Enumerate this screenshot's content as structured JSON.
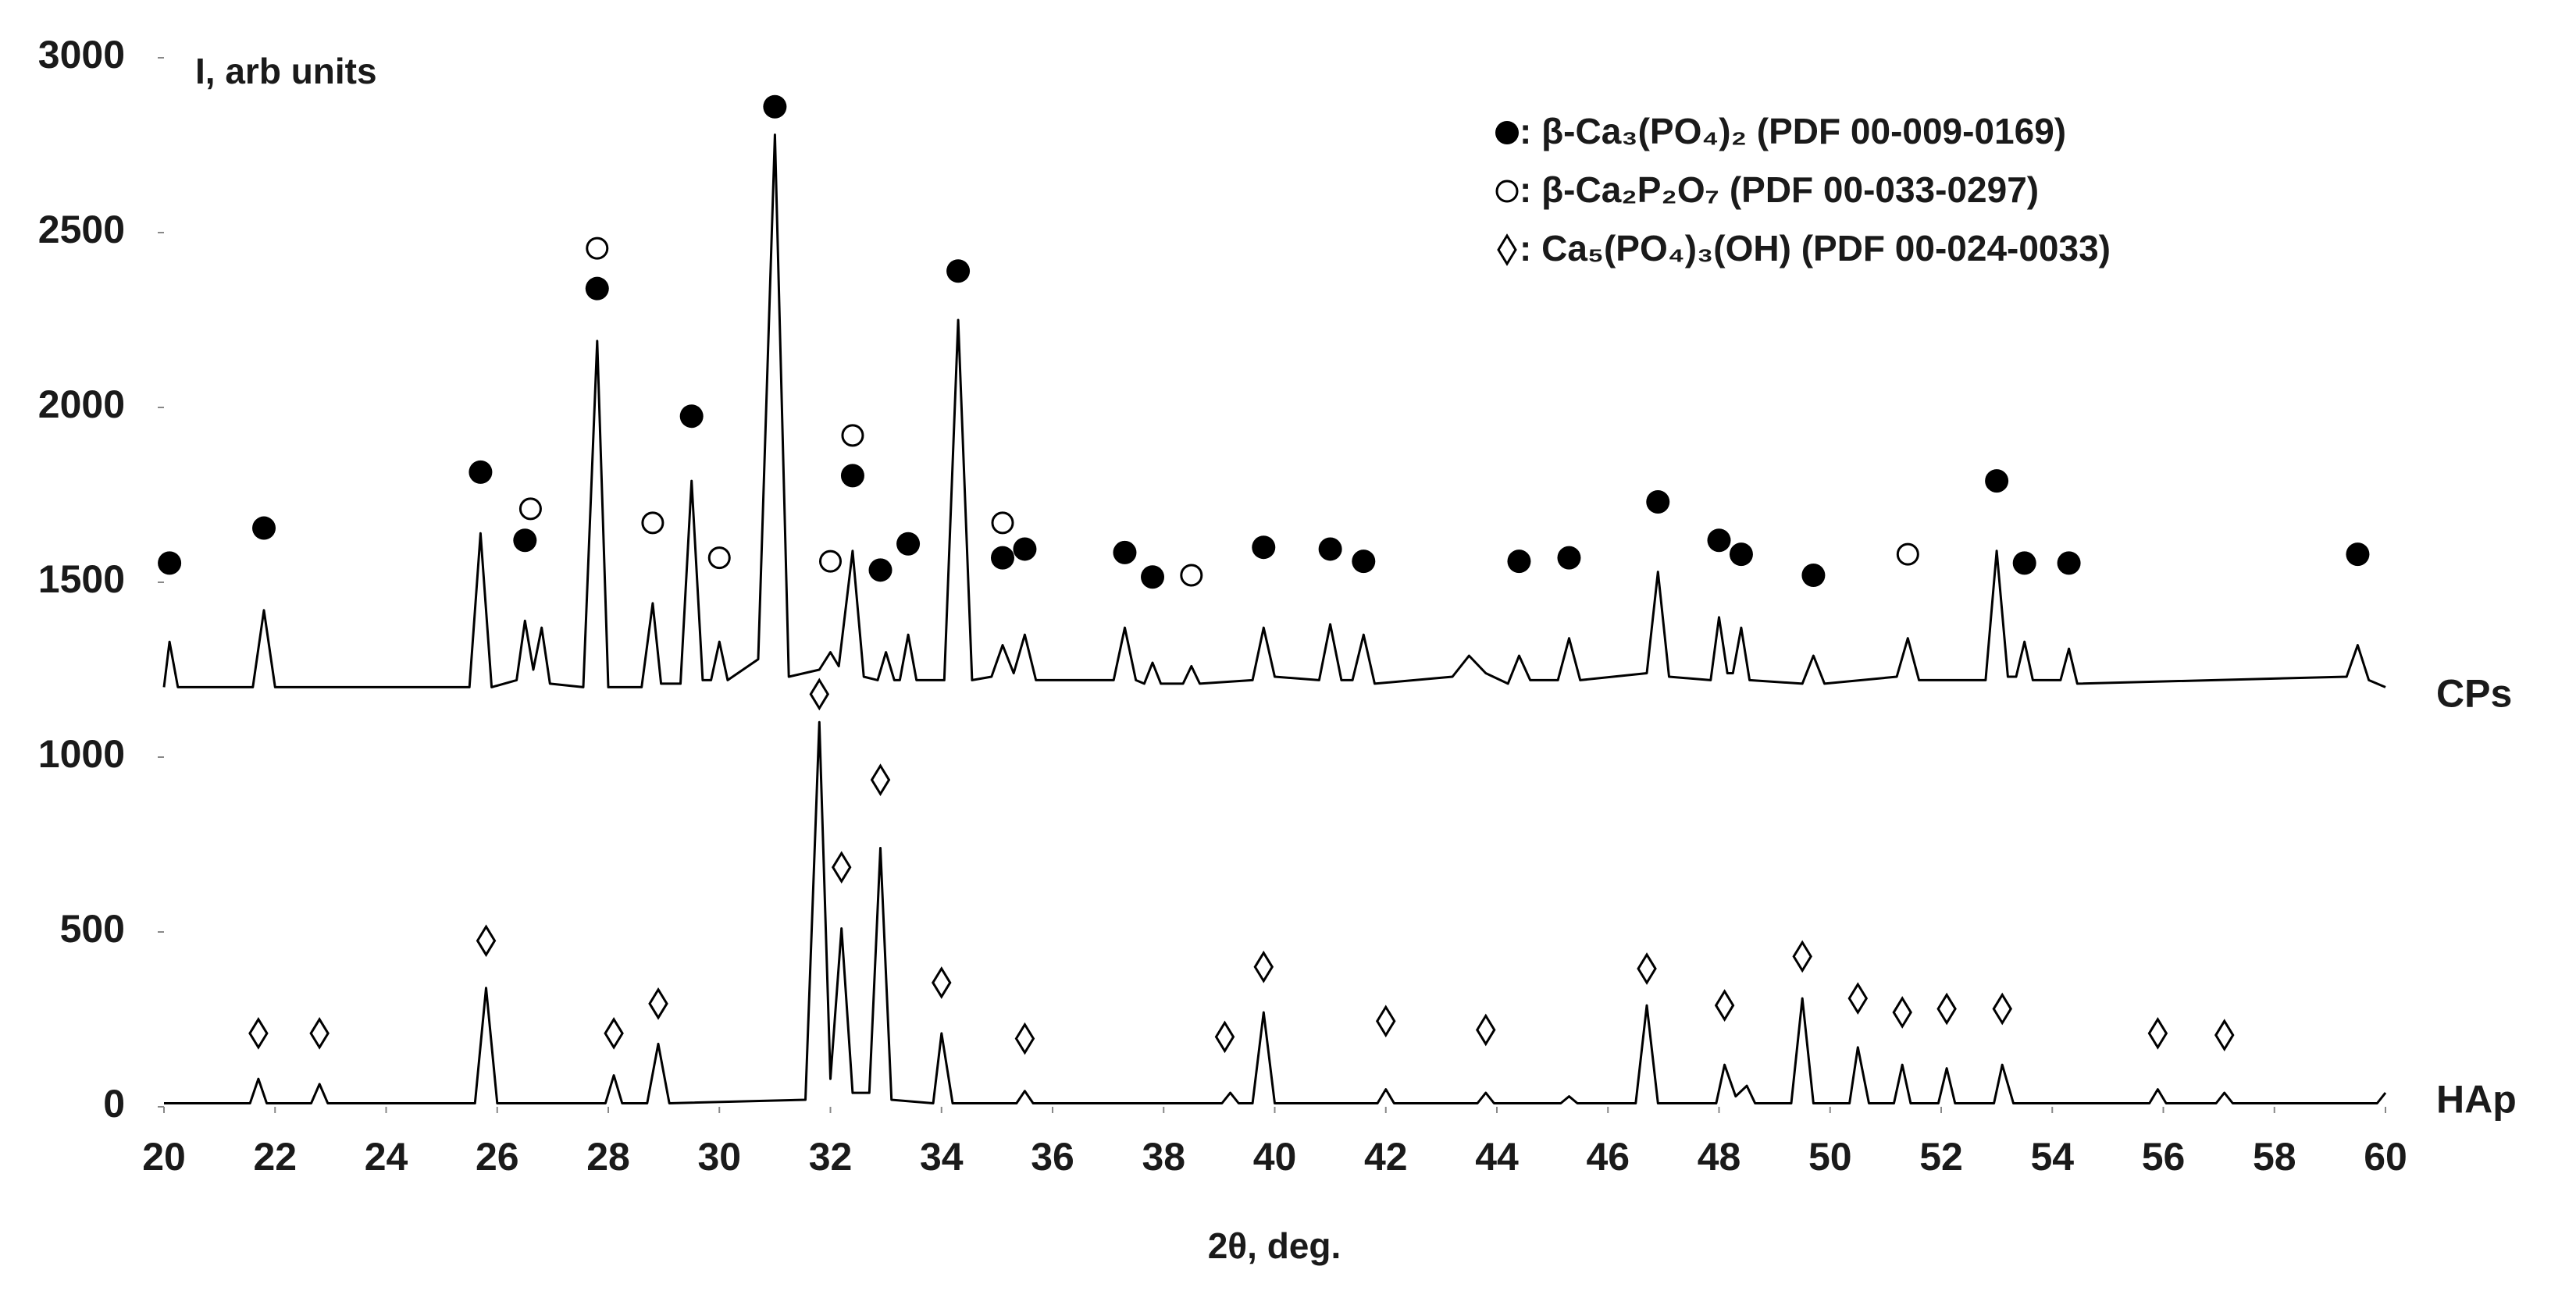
{
  "chart_data": {
    "type": "line",
    "y_label": "I, arb units",
    "x_label": "2θ, deg.",
    "xlim": [
      20,
      60
    ],
    "xticks": [
      20,
      22,
      24,
      26,
      28,
      30,
      32,
      34,
      36,
      38,
      40,
      42,
      44,
      46,
      48,
      50,
      52,
      54,
      56,
      58,
      60
    ],
    "ylim": [
      0,
      3000
    ],
    "yticks": [
      0,
      500,
      1000,
      1500,
      2000,
      2500,
      3000
    ],
    "grid": false,
    "legend": "upper right",
    "series": [
      {
        "name": "CPs",
        "color": "#000000",
        "x": [
          20,
          20.1,
          20.25,
          21.6,
          21.8,
          22,
          25.5,
          25.7,
          25.9,
          26.35,
          26.5,
          26.65,
          26.8,
          26.95,
          27.55,
          27.8,
          28.0,
          28.6,
          28.8,
          28.95,
          29.3,
          29.5,
          29.7,
          29.85,
          30.0,
          30.15,
          30.7,
          31.0,
          31.25,
          31.8,
          32.0,
          32.15,
          32.4,
          32.6,
          32.85,
          33.0,
          33.15,
          33.25,
          33.4,
          33.55,
          34.05,
          34.3,
          34.55,
          34.9,
          35.1,
          35.3,
          35.5,
          35.7,
          37.1,
          37.3,
          37.5,
          37.65,
          37.8,
          37.95,
          38.35,
          38.5,
          38.65,
          39.6,
          39.8,
          40.0,
          40.8,
          41.0,
          41.2,
          41.4,
          41.6,
          41.8,
          43.2,
          43.5,
          43.8,
          44.2,
          44.4,
          44.6,
          45.1,
          45.3,
          45.5,
          46.7,
          46.9,
          47.1,
          47.85,
          48.0,
          48.15,
          48.25,
          48.4,
          48.55,
          49.5,
          49.7,
          49.9,
          51.2,
          51.4,
          51.6,
          52.8,
          53.0,
          53.2,
          53.35,
          53.5,
          53.65,
          54.15,
          54.3,
          54.45,
          59.3,
          59.5,
          59.7,
          60
        ],
        "values": [
          1200,
          1330,
          1200,
          1200,
          1420,
          1200,
          1200,
          1640,
          1200,
          1220,
          1390,
          1250,
          1370,
          1210,
          1200,
          2190,
          1200,
          1200,
          1440,
          1210,
          1210,
          1790,
          1220,
          1220,
          1330,
          1220,
          1280,
          2780,
          1230,
          1250,
          1300,
          1260,
          1590,
          1230,
          1220,
          1300,
          1220,
          1220,
          1350,
          1220,
          1220,
          2250,
          1220,
          1230,
          1320,
          1240,
          1350,
          1220,
          1220,
          1370,
          1220,
          1210,
          1270,
          1210,
          1210,
          1260,
          1210,
          1220,
          1370,
          1230,
          1220,
          1380,
          1220,
          1220,
          1350,
          1210,
          1230,
          1290,
          1240,
          1210,
          1290,
          1220,
          1220,
          1340,
          1220,
          1240,
          1530,
          1230,
          1220,
          1400,
          1240,
          1240,
          1370,
          1220,
          1210,
          1290,
          1210,
          1230,
          1340,
          1220,
          1220,
          1590,
          1230,
          1230,
          1330,
          1220,
          1220,
          1310,
          1210,
          1230,
          1320,
          1220,
          1200
        ]
      },
      {
        "name": "HAp",
        "color": "#000000",
        "x": [
          20,
          21.55,
          21.7,
          21.85,
          22.65,
          22.8,
          22.95,
          25.6,
          25.8,
          26.0,
          27.95,
          28.1,
          28.25,
          28.7,
          28.9,
          29.1,
          31.55,
          31.8,
          32.0,
          32.2,
          32.4,
          32.7,
          32.9,
          33.1,
          33.85,
          34.0,
          34.2,
          35.35,
          35.5,
          35.65,
          39.05,
          39.2,
          39.35,
          39.6,
          39.8,
          40.0,
          41.85,
          42.0,
          42.15,
          43.65,
          43.8,
          43.95,
          45.15,
          45.3,
          45.45,
          46.5,
          46.7,
          46.9,
          47.95,
          48.1,
          48.3,
          48.5,
          48.65,
          49.3,
          49.5,
          49.7,
          50.35,
          50.5,
          50.7,
          51.15,
          51.3,
          51.45,
          51.95,
          52.1,
          52.25,
          52.95,
          53.1,
          53.3,
          55.75,
          55.9,
          56.05,
          56.95,
          57.1,
          57.25,
          59.85,
          60
        ],
        "values": [
          10,
          10,
          80,
          10,
          10,
          65,
          10,
          10,
          340,
          10,
          10,
          90,
          10,
          10,
          180,
          10,
          20,
          1100,
          80,
          510,
          40,
          40,
          740,
          20,
          10,
          210,
          10,
          10,
          45,
          10,
          10,
          40,
          10,
          10,
          270,
          10,
          10,
          50,
          10,
          10,
          40,
          10,
          10,
          30,
          10,
          10,
          290,
          10,
          10,
          120,
          30,
          60,
          10,
          10,
          310,
          10,
          10,
          170,
          10,
          10,
          120,
          10,
          10,
          110,
          10,
          10,
          120,
          10,
          10,
          50,
          10,
          10,
          40,
          10,
          10,
          40
        ]
      }
    ],
    "markers": [
      {
        "name": ": β-Ca₃(PO₄)₂ (PDF 00-009-0169)",
        "symbol": "filled-circle",
        "color": "#000000",
        "x": [
          20.1,
          21.8,
          25.7,
          26.5,
          27.8,
          29.5,
          31.0,
          32.4,
          32.9,
          33.4,
          34.3,
          35.1,
          35.5,
          37.3,
          37.8,
          39.8,
          41.0,
          41.6,
          44.4,
          45.3,
          46.9,
          48.0,
          48.4,
          49.7,
          53.0,
          53.5,
          54.3,
          59.5
        ],
        "values": [
          1555,
          1655,
          1815,
          1620,
          2340,
          1975,
          2860,
          1805,
          1535,
          1610,
          2390,
          1570,
          1595,
          1585,
          1515,
          1600,
          1595,
          1560,
          1560,
          1570,
          1730,
          1620,
          1580,
          1520,
          1790,
          1555,
          1555,
          1580
        ]
      },
      {
        "name": ": β-Ca₂P₂O₇ (PDF 00-033-0297)",
        "symbol": "open-circle",
        "color": "#000000",
        "x": [
          26.6,
          27.8,
          28.8,
          30.0,
          32.0,
          32.4,
          35.1,
          38.5,
          51.4
        ],
        "values": [
          1710,
          2455,
          1670,
          1570,
          1560,
          1920,
          1670,
          1520,
          1580
        ]
      },
      {
        "name": ": Ca₅(PO₄)₃(OH) (PDF 00-024-0033)",
        "symbol": "open-diamond",
        "color": "#000000",
        "x": [
          21.7,
          22.8,
          25.8,
          28.1,
          28.9,
          31.8,
          32.2,
          32.9,
          34.0,
          35.5,
          39.1,
          39.8,
          42.0,
          43.8,
          46.7,
          48.1,
          49.5,
          50.5,
          51.3,
          52.1,
          53.1,
          55.9,
          57.1
        ],
        "values": [
          210,
          210,
          475,
          210,
          295,
          1180,
          685,
          935,
          355,
          195,
          200,
          400,
          245,
          220,
          395,
          290,
          430,
          310,
          270,
          280,
          280,
          210,
          205
        ]
      }
    ]
  }
}
